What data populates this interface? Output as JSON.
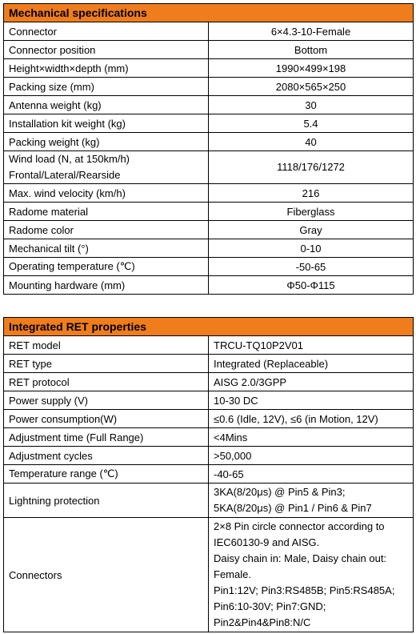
{
  "mechanical": {
    "title": "Mechanical specifications",
    "rows": [
      {
        "label": "Connector",
        "value": "6×4.3-10-Female"
      },
      {
        "label": "Connector position",
        "value": "Bottom"
      },
      {
        "label": "Height×width×depth (mm)",
        "value": "1990×499×198"
      },
      {
        "label": "Packing size (mm)",
        "value": "2080×565×250"
      },
      {
        "label": "Antenna weight (kg)",
        "value": "30"
      },
      {
        "label": "Installation kit weight (kg)",
        "value": "5.4"
      },
      {
        "label": "Packing weight (kg)",
        "value": "40"
      },
      {
        "label": "Wind load (N, at 150km/h)\nFrontal/Lateral/Rearside",
        "value": "1118/176/1272"
      },
      {
        "label": "Max. wind velocity (km/h)",
        "value": "216"
      },
      {
        "label": "Radome material",
        "value": "Fiberglass"
      },
      {
        "label": "Radome color",
        "value": "Gray"
      },
      {
        "label": "Mechanical tilt (°)",
        "value": "0-10"
      },
      {
        "label": "Operating temperature (℃)",
        "value": "-50-65"
      },
      {
        "label": "Mounting hardware (mm)",
        "value": "Φ50-Φ115"
      }
    ]
  },
  "ret": {
    "title": "Integrated RET properties",
    "rows": [
      {
        "label": "RET model",
        "value": "TRCU-TQ10P2V01"
      },
      {
        "label": "RET type",
        "value": "Integrated (Replaceable)"
      },
      {
        "label": "RET protocol",
        "value": "AISG 2.0/3GPP"
      },
      {
        "label": "Power supply (V)",
        "value": "10-30 DC"
      },
      {
        "label": "Power consumption(W)",
        "value": "≤0.6 (Idle, 12V), ≤6 (in Motion, 12V)"
      },
      {
        "label": "Adjustment time (Full Range)",
        "value": "<4Mins"
      },
      {
        "label": "Adjustment cycles",
        "value": ">50,000"
      },
      {
        "label": "Temperature range (℃)",
        "value": "-40-65"
      },
      {
        "label": "Lightning protection",
        "value": "3KA(8/20μs) @ Pin5 & Pin3;\n5KA(8/20μs) @ Pin1 / Pin6 & Pin7"
      },
      {
        "label": "Connectors",
        "value": "2×8 Pin circle connector according to\nIEC60130-9 and AISG.\nDaisy chain in: Male, Daisy chain out:\nFemale.\nPin1:12V; Pin3:RS485B; Pin5:RS485A;\nPin6:10-30V; Pin7:GND;\nPin2&Pin4&Pin8:N/C"
      }
    ]
  }
}
